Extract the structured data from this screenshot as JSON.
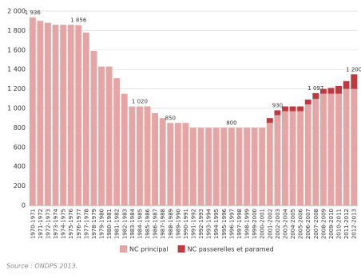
{
  "chart_data": {
    "type": "stacked-bar",
    "categories": [
      "1970-1971",
      "1971-1972",
      "1972-1973",
      "1973-1974",
      "1974-1975",
      "1975-1976",
      "1976-1977",
      "1977-1978",
      "1978-1979",
      "1979-1980",
      "1980-1981",
      "1981-1982",
      "1982-1983",
      "1983-1984",
      "1984-1985",
      "1985-1986",
      "1986-1987",
      "1987-1988",
      "1988-1989",
      "1989-1990",
      "1990-1991",
      "1991-1992",
      "1992-1993",
      "1993-1994",
      "1994-1995",
      "1995-1996",
      "1996-1997",
      "1997-1998",
      "1998-1999",
      "1999-2000",
      "2000-2001",
      "2001-2002",
      "2002-2003",
      "2003-2004",
      "2004-2005",
      "2005-2006",
      "2006-2007",
      "2007-2008",
      "2008-2009",
      "2009-2010",
      "2010-2011",
      "2011-2012",
      "2012-2013"
    ],
    "series": [
      {
        "name": "NC principal",
        "color": "#e4a5a4",
        "values": [
          1936,
          1900,
          1880,
          1860,
          1860,
          1860,
          1856,
          1780,
          1590,
          1430,
          1430,
          1310,
          1150,
          1020,
          1020,
          1020,
          950,
          900,
          850,
          850,
          850,
          800,
          800,
          800,
          800,
          800,
          800,
          800,
          800,
          800,
          800,
          850,
          930,
          970,
          970,
          970,
          1040,
          1097,
          1150,
          1150,
          1150,
          1200,
          1200
        ],
        "value_labels": [
          "1 936",
          null,
          null,
          null,
          null,
          null,
          "1 856",
          null,
          null,
          null,
          null,
          null,
          null,
          null,
          "1 020",
          null,
          null,
          null,
          "850",
          null,
          null,
          null,
          null,
          null,
          null,
          null,
          "800",
          null,
          null,
          null,
          null,
          null,
          "930",
          null,
          null,
          null,
          null,
          "1 097",
          null,
          null,
          null,
          null,
          "1 200"
        ]
      },
      {
        "name": "NC passerelles et paramed",
        "color": "#c0393f",
        "values": [
          null,
          null,
          null,
          null,
          null,
          null,
          null,
          null,
          null,
          null,
          null,
          null,
          null,
          null,
          null,
          null,
          null,
          null,
          null,
          null,
          null,
          null,
          null,
          null,
          null,
          null,
          null,
          null,
          null,
          null,
          null,
          50,
          50,
          50,
          50,
          50,
          50,
          60,
          50,
          60,
          80,
          80,
          150
        ]
      }
    ],
    "ylim": [
      0,
      2000
    ],
    "yticks": [
      0,
      200,
      400,
      600,
      800,
      {
        "value": 1000,
        "label": "1 000"
      },
      {
        "value": 1200,
        "label": "1 200"
      },
      {
        "value": 1400,
        "label": "1 400"
      },
      {
        "value": 1600,
        "label": "1 600"
      },
      {
        "value": 1800,
        "label": "1 800"
      },
      {
        "value": 2000,
        "label": "2 000"
      }
    ],
    "grid": true,
    "legend": "bottom",
    "source": "Source : ONDPS 2013."
  }
}
